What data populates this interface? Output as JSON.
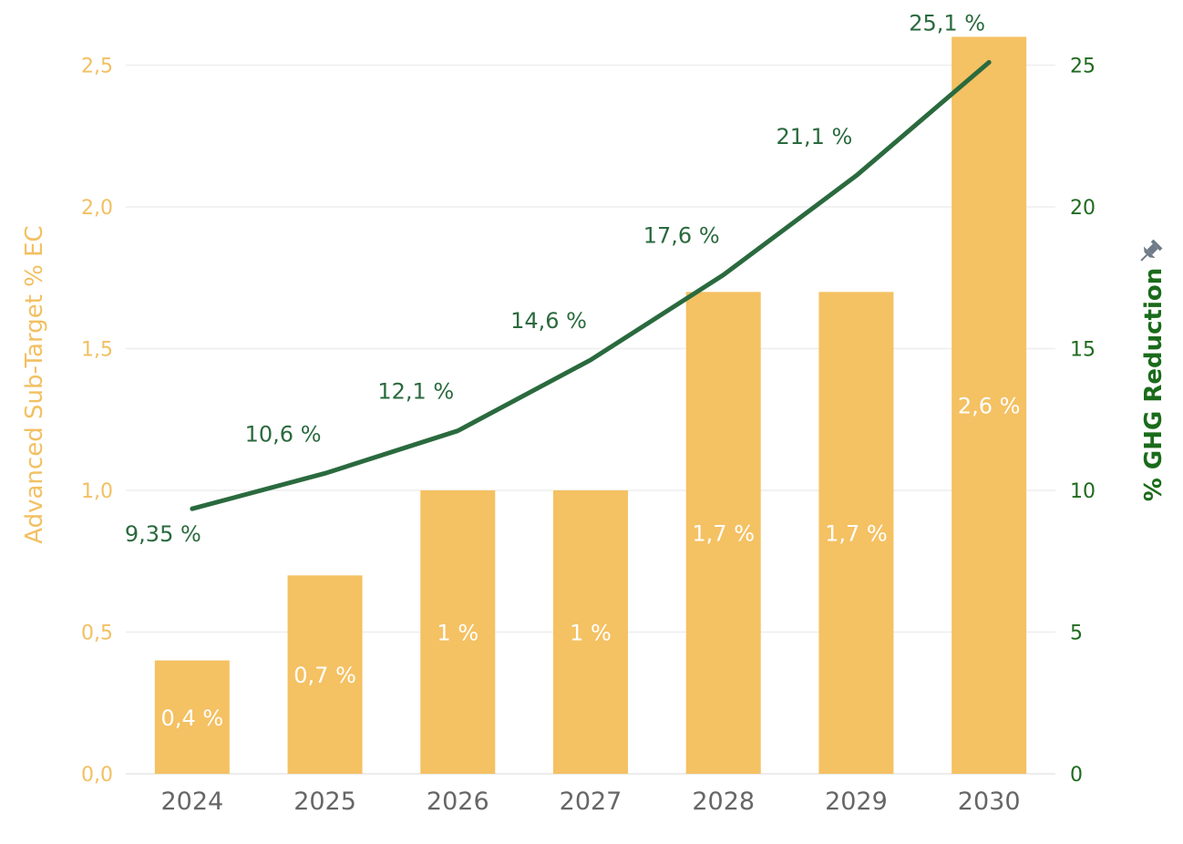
{
  "chart_data": {
    "type": "bar+line",
    "categories": [
      "2024",
      "2025",
      "2026",
      "2027",
      "2028",
      "2029",
      "2030"
    ],
    "series": [
      {
        "kind": "bar",
        "axis": "left",
        "values": [
          0.4,
          0.7,
          1.0,
          1.0,
          1.7,
          1.7,
          2.6
        ],
        "labels": [
          "0,4 %",
          "0,7 %",
          "1 %",
          "1 %",
          "1,7 %",
          "1,7 %",
          "2,6 %"
        ],
        "color": "#f4c163"
      },
      {
        "kind": "line",
        "axis": "right",
        "values": [
          9.35,
          10.6,
          12.1,
          14.6,
          17.6,
          21.1,
          25.1
        ],
        "labels": [
          "9,35 %",
          "10,6 %",
          "12,1 %",
          "14,6 %",
          "17,6 %",
          "21,1 %",
          "25,1 %"
        ],
        "color": "#2a6a3e"
      }
    ],
    "y_left": {
      "label": "Advanced Sub-Target % EC",
      "range": [
        0,
        2.6
      ],
      "ticks": [
        0,
        0.5,
        1.0,
        1.5,
        2.0,
        2.5
      ],
      "tick_labels": [
        "0,0",
        "0,5",
        "1,0",
        "1,5",
        "2,0",
        "2,5"
      ],
      "color": "#f2c062"
    },
    "y_right": {
      "label": "% GHG Reduction",
      "range": [
        0,
        26
      ],
      "ticks": [
        0,
        5,
        10,
        15,
        20,
        25
      ],
      "tick_labels": [
        "0",
        "5",
        "10",
        "15",
        "20",
        "25"
      ],
      "color": "#1f6b1f"
    },
    "grid": true,
    "pin_icon": "pin-icon"
  }
}
